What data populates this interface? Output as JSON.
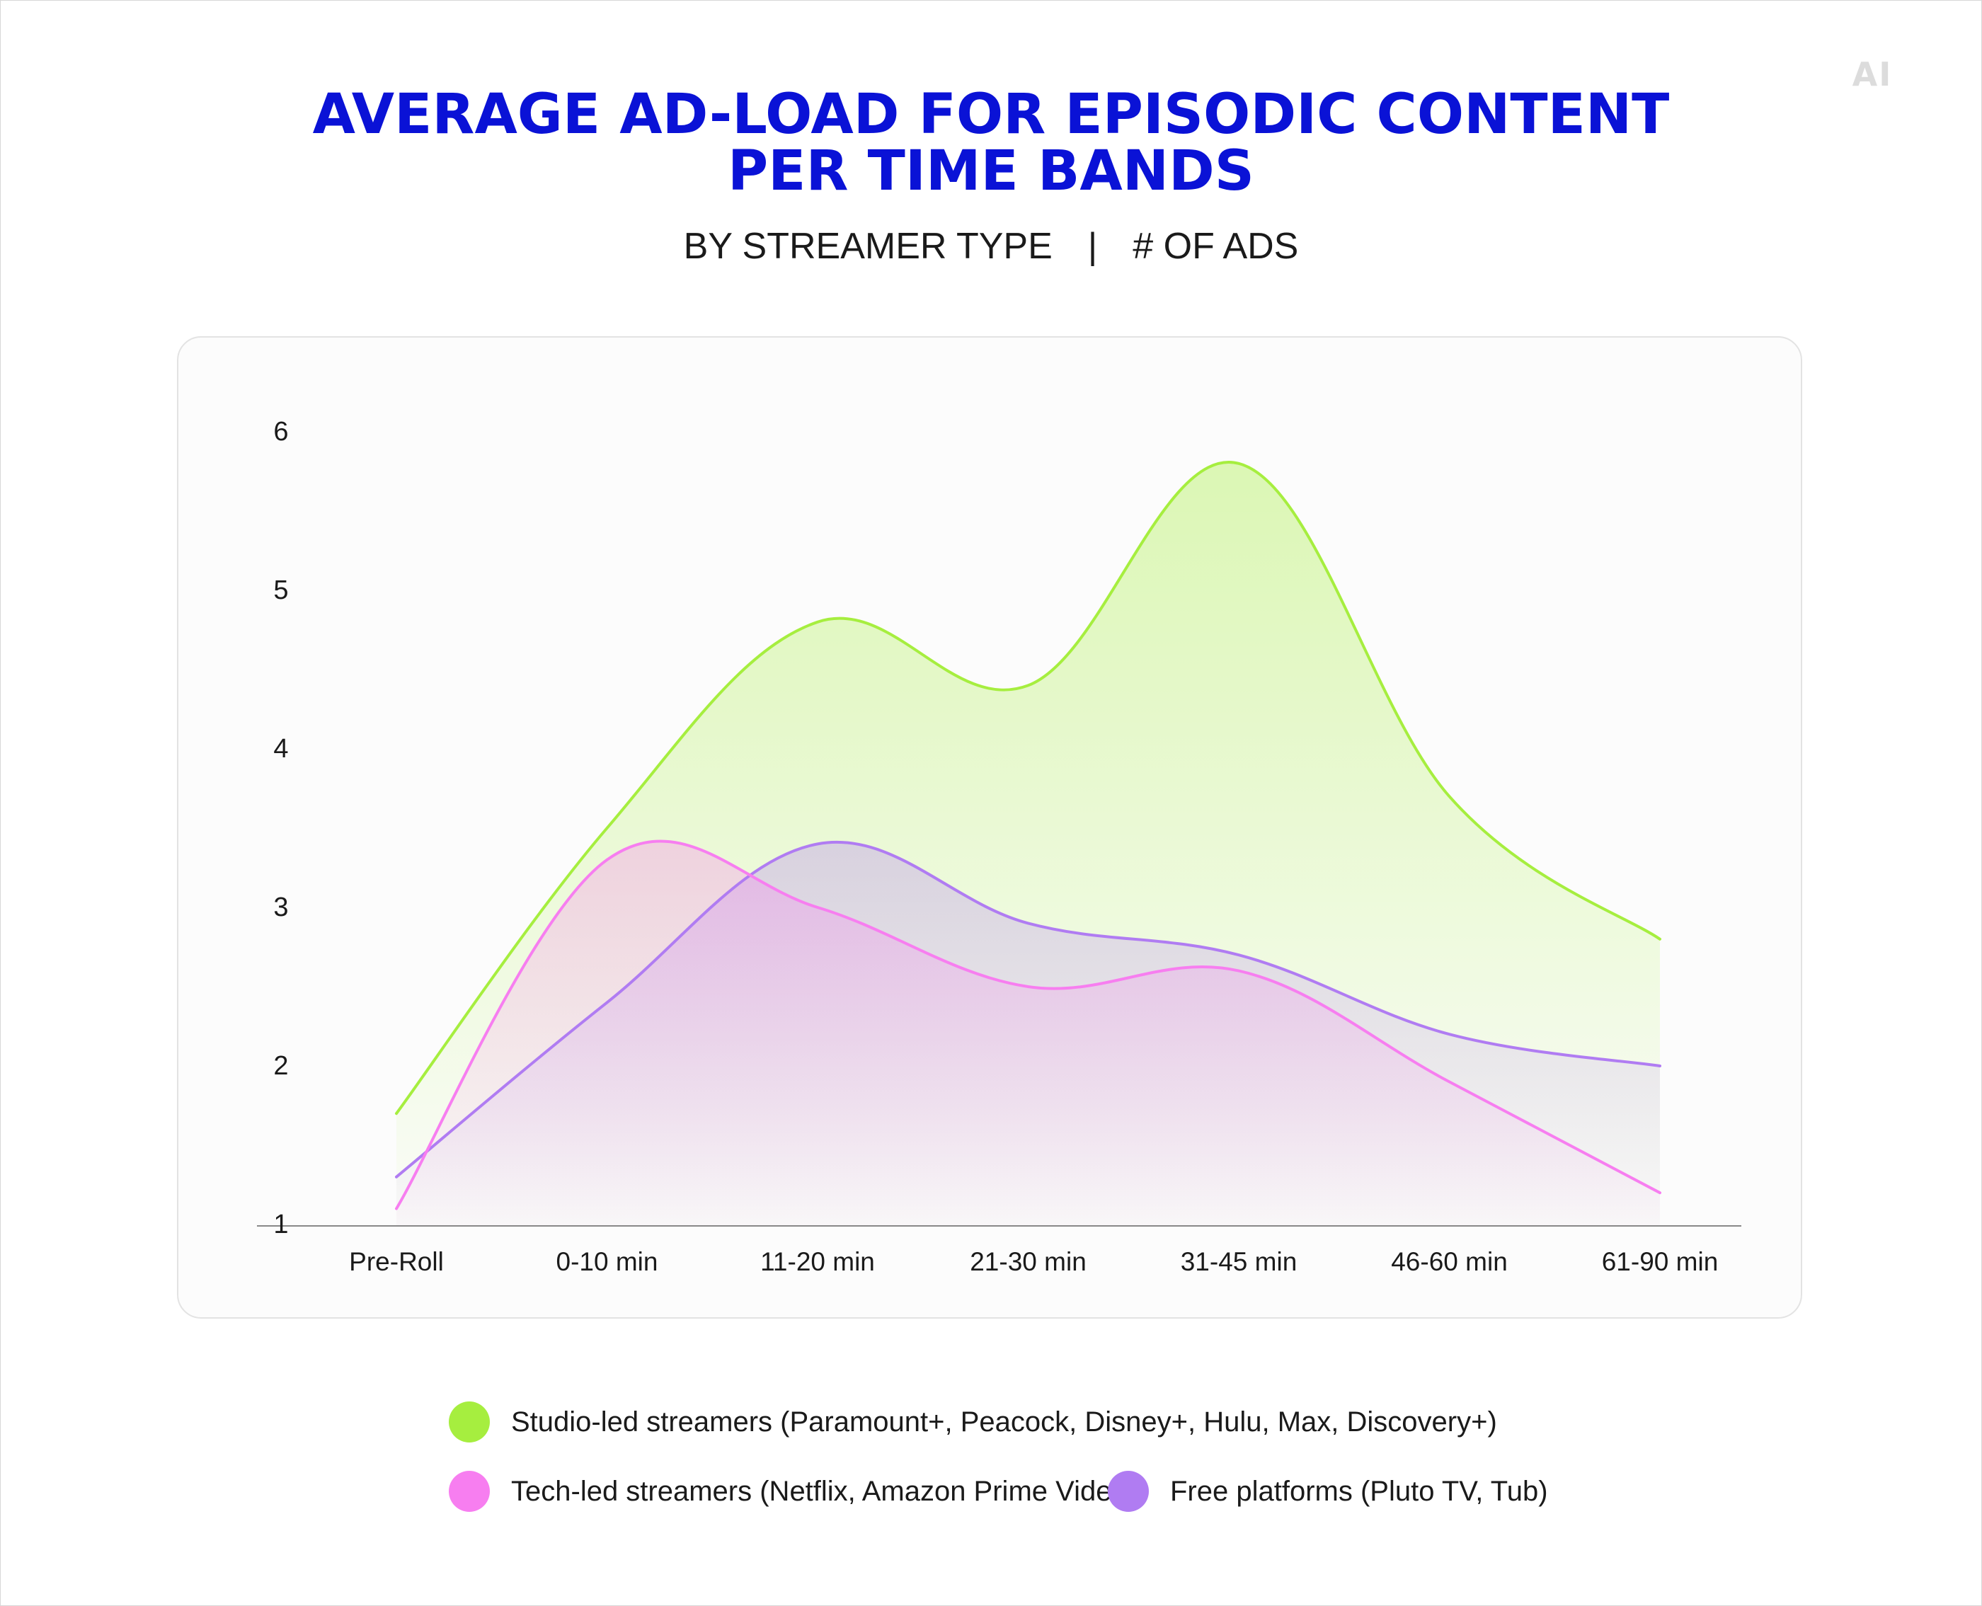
{
  "logo_text": "AI",
  "title_lines": [
    "AVERAGE AD-LOAD FOR EPISODIC CONTENT",
    "PER TIME BANDS"
  ],
  "subtitle": {
    "left": "BY STREAMER TYPE",
    "separator": "|",
    "right": "# OF ADS"
  },
  "colors": {
    "title": "#0a12d6",
    "studio": "#a6ee3f",
    "tech": "#f77ef0",
    "free": "#b07cf2",
    "axis": "#888888"
  },
  "chart_data": {
    "type": "area",
    "title": "AVERAGE AD-LOAD FOR EPISODIC CONTENT PER TIME BANDS",
    "subtitle": "BY STREAMER TYPE | # OF ADS",
    "categories": [
      "Pre-Roll",
      "0-10 min",
      "11-20 min",
      "21-30 min",
      "31-45 min",
      "46-60 min",
      "61-90 min"
    ],
    "yticks": [
      1,
      2,
      3,
      4,
      5,
      6
    ],
    "ylim": [
      1,
      6
    ],
    "xlabel": "",
    "ylabel": "",
    "grid": false,
    "series": [
      {
        "name": "Studio-led streamers",
        "legend": "Studio-led streamers (Paramount+, Peacock, Disney+, Hulu, Max, Discovery+)",
        "color": "#a6ee3f",
        "values": [
          1.7,
          3.5,
          4.8,
          4.4,
          5.8,
          3.7,
          2.8
        ]
      },
      {
        "name": "Free platforms",
        "legend": "Free platforms (Pluto TV, Tub)",
        "color": "#b07cf2",
        "values": [
          1.3,
          2.4,
          3.4,
          2.9,
          2.7,
          2.2,
          2.0
        ]
      },
      {
        "name": "Tech-led streamers",
        "legend": "Tech-led streamers (Netflix, Amazon Prime Video)",
        "color": "#f77ef0",
        "values": [
          1.1,
          3.3,
          3.0,
          2.5,
          2.6,
          1.9,
          1.2
        ]
      }
    ]
  }
}
